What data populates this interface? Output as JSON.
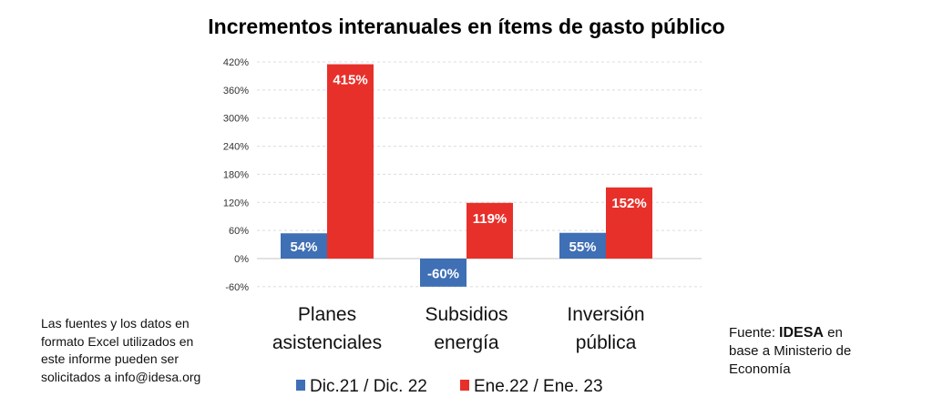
{
  "chart_data": {
    "type": "bar",
    "title": "Incrementos interanuales en ítems de gasto público",
    "categories": [
      [
        "Planes",
        "asistenciales"
      ],
      [
        "Subsidios",
        "energía"
      ],
      [
        "Inversión",
        "pública"
      ]
    ],
    "series": [
      {
        "name": "Dic.21 / Dic. 22",
        "values": [
          54,
          -60,
          55
        ],
        "labels": [
          "54%",
          "-60%",
          "55%"
        ],
        "color": "#3f6fb5"
      },
      {
        "name": "Ene.22 / Ene. 23",
        "values": [
          415,
          119,
          152
        ],
        "labels": [
          "415%",
          "119%",
          "152%"
        ],
        "color": "#e8302a"
      }
    ],
    "yticks": [
      -60,
      0,
      60,
      120,
      180,
      240,
      300,
      360,
      420
    ],
    "ytick_labels": [
      "-60%",
      "0%",
      "60%",
      "120%",
      "180%",
      "240%",
      "300%",
      "360%",
      "420%"
    ],
    "ylim": [
      -60,
      420
    ],
    "grid": true,
    "legend_position": "bottom",
    "xlabel": "",
    "ylabel": ""
  },
  "notes": {
    "left": [
      "Las fuentes y los datos en",
      "formato Excel utilizados en",
      "este informe pueden ser",
      "solicitados a info@idesa.org"
    ],
    "right_prefix": "Fuente: ",
    "right_brand": "IDESA",
    "right_suffix": " en",
    "right_lines": [
      "base a Ministerio de",
      "Economía"
    ]
  }
}
